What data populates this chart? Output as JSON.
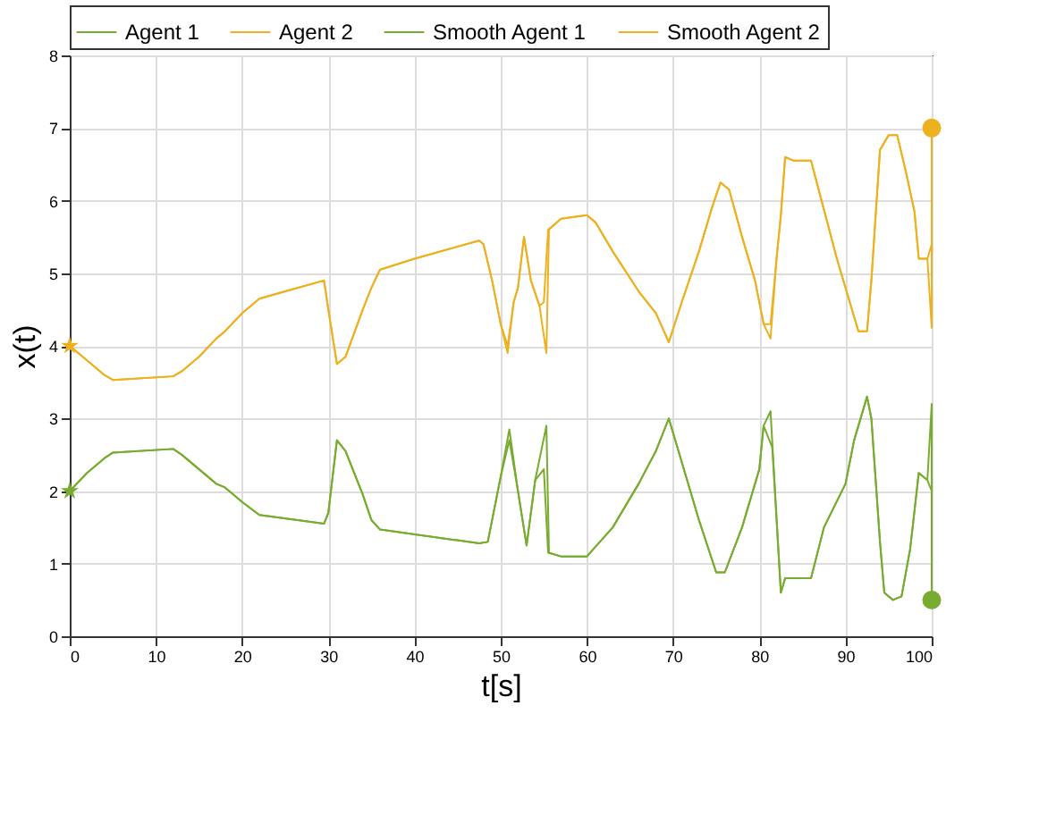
{
  "chart_data": {
    "type": "line",
    "xlabel": "t[s]",
    "ylabel": "x(t)",
    "xlim": [
      0,
      100
    ],
    "xticks": [
      0,
      10,
      20,
      30,
      40,
      50,
      60,
      70,
      80,
      90,
      100
    ],
    "ylim": [
      0,
      8
    ],
    "yticks": [
      0,
      1,
      2,
      3,
      4,
      5,
      6,
      7,
      8
    ],
    "grid": true,
    "legend": "top",
    "marker": "none",
    "line_style": "solid",
    "series": [
      {
        "name": "Agent 1",
        "color": "#77ac30",
        "x": [
          0,
          2,
          4,
          5,
          12,
          13,
          15,
          17,
          18,
          20,
          22,
          29.5,
          30,
          31,
          32,
          34,
          35,
          36,
          47.5,
          48.5,
          50,
          51,
          52,
          53,
          54,
          55.3,
          55.6,
          57,
          60,
          63,
          66,
          68,
          69.5,
          71,
          73,
          75,
          76,
          78,
          80,
          80.5,
          81.3,
          82.5,
          83,
          86,
          87.5,
          90,
          91,
          92.5,
          93,
          94,
          94.5,
          95.5,
          96.5,
          97.5,
          98.5,
          99.5,
          100,
          100
        ],
        "values": [
          2.0,
          2.25,
          2.45,
          2.53,
          2.58,
          2.5,
          2.3,
          2.1,
          2.05,
          1.85,
          1.67,
          1.55,
          1.7,
          2.7,
          2.55,
          1.95,
          1.6,
          1.47,
          1.28,
          1.3,
          2.2,
          2.85,
          2.0,
          1.25,
          2.15,
          2.9,
          1.15,
          1.1,
          1.1,
          1.5,
          2.1,
          2.55,
          3.0,
          2.4,
          1.6,
          0.88,
          0.88,
          1.5,
          2.3,
          2.9,
          3.1,
          0.6,
          0.8,
          0.8,
          1.5,
          2.1,
          2.7,
          3.3,
          3.0,
          1.3,
          0.6,
          0.5,
          0.55,
          1.2,
          2.25,
          2.15,
          3.2,
          0.5
        ]
      },
      {
        "name": "Agent 2",
        "color": "#edb120",
        "x": [
          0,
          2,
          4,
          5,
          12,
          13,
          15,
          17,
          18,
          20,
          22,
          25,
          29.5,
          30,
          31,
          32,
          34,
          35,
          36,
          40,
          47.5,
          48,
          49,
          50,
          50.8,
          51.5,
          52,
          52.7,
          53.5,
          54.5,
          55.3,
          55.6,
          57,
          60,
          61,
          63,
          66,
          68,
          69.5,
          71,
          73,
          74.5,
          75.5,
          76.5,
          78,
          79.5,
          80.5,
          81.3,
          82,
          82.5,
          83,
          84,
          86,
          87,
          89,
          90.5,
          91.5,
          92.5,
          93,
          94,
          95,
          96,
          97,
          98,
          98.5,
          99.5,
          100,
          100
        ],
        "values": [
          4.0,
          3.8,
          3.6,
          3.53,
          3.58,
          3.65,
          3.85,
          4.1,
          4.2,
          4.45,
          4.65,
          4.75,
          4.9,
          4.5,
          3.75,
          3.85,
          4.5,
          4.8,
          5.05,
          5.2,
          5.45,
          5.4,
          4.9,
          4.3,
          3.9,
          4.6,
          4.8,
          5.5,
          4.9,
          4.55,
          3.9,
          5.6,
          5.75,
          5.8,
          5.7,
          5.3,
          4.75,
          4.45,
          4.05,
          4.6,
          5.3,
          5.9,
          6.25,
          6.15,
          5.5,
          4.9,
          4.3,
          4.1,
          5.2,
          5.8,
          6.6,
          6.55,
          6.55,
          6.1,
          5.2,
          4.6,
          4.2,
          4.2,
          4.9,
          6.7,
          6.9,
          6.9,
          6.4,
          5.85,
          5.2,
          5.2,
          4.25,
          7.0
        ]
      },
      {
        "name": "Smooth Agent 1",
        "color": "#77ac30",
        "x": [
          0,
          2,
          4,
          5,
          12,
          13,
          15,
          17,
          18,
          20,
          22,
          29.5,
          30,
          31,
          32,
          34,
          35,
          36,
          47.5,
          48.5,
          50,
          51,
          52,
          53,
          54,
          55,
          55.5,
          57,
          60,
          63,
          66,
          68,
          69.5,
          71,
          73,
          75,
          76,
          78,
          80,
          80.5,
          81.5,
          82.5,
          83,
          86,
          87.5,
          90,
          91,
          92.5,
          93,
          94,
          94.5,
          95.5,
          96.5,
          97.5,
          98.5,
          99.5,
          100
        ],
        "values": [
          2.0,
          2.25,
          2.45,
          2.53,
          2.58,
          2.5,
          2.3,
          2.1,
          2.05,
          1.85,
          1.67,
          1.55,
          1.7,
          2.7,
          2.55,
          1.95,
          1.6,
          1.47,
          1.28,
          1.3,
          2.2,
          2.7,
          2.0,
          1.25,
          2.15,
          2.3,
          1.15,
          1.1,
          1.1,
          1.5,
          2.1,
          2.55,
          3.0,
          2.4,
          1.6,
          0.88,
          0.88,
          1.5,
          2.3,
          2.9,
          2.6,
          0.6,
          0.8,
          0.8,
          1.5,
          2.1,
          2.7,
          3.3,
          3.0,
          1.3,
          0.6,
          0.5,
          0.55,
          1.2,
          2.25,
          2.15,
          2.0
        ]
      },
      {
        "name": "Smooth Agent 2",
        "color": "#edb120",
        "x": [
          0,
          2,
          4,
          5,
          12,
          13,
          15,
          17,
          18,
          20,
          22,
          25,
          29.5,
          30,
          31,
          32,
          34,
          35,
          36,
          40,
          47.5,
          48,
          49,
          50,
          50.8,
          51.5,
          52,
          52.7,
          53.5,
          54.5,
          55,
          55.5,
          57,
          60,
          61,
          63,
          66,
          68,
          69.5,
          71,
          73,
          74.5,
          75.5,
          76.5,
          78,
          79.5,
          80.5,
          81.3,
          82,
          82.5,
          83,
          84,
          86,
          87,
          89,
          90.5,
          91.5,
          92.5,
          93,
          94,
          95,
          96,
          97,
          98,
          98.5,
          99.5,
          100
        ],
        "values": [
          4.0,
          3.8,
          3.6,
          3.53,
          3.58,
          3.65,
          3.85,
          4.1,
          4.2,
          4.45,
          4.65,
          4.75,
          4.9,
          4.5,
          3.75,
          3.85,
          4.5,
          4.8,
          5.05,
          5.2,
          5.45,
          5.4,
          4.9,
          4.3,
          4.0,
          4.6,
          4.8,
          5.5,
          4.9,
          4.55,
          4.6,
          5.6,
          5.75,
          5.8,
          5.7,
          5.3,
          4.75,
          4.45,
          4.05,
          4.6,
          5.3,
          5.9,
          6.25,
          6.15,
          5.5,
          4.9,
          4.3,
          4.3,
          5.2,
          5.8,
          6.6,
          6.55,
          6.55,
          6.1,
          5.2,
          4.6,
          4.2,
          4.2,
          4.9,
          6.7,
          6.9,
          6.9,
          6.4,
          5.85,
          5.2,
          5.2,
          5.4
        ]
      },
      {
        "type": "scatter",
        "marker": "star",
        "color": "#77ac30",
        "x": [
          0
        ],
        "values": [
          2.0
        ]
      },
      {
        "type": "scatter",
        "marker": "star",
        "color": "#edb120",
        "x": [
          0
        ],
        "values": [
          4.0
        ]
      },
      {
        "type": "scatter",
        "marker": "circle",
        "color": "#77ac30",
        "x": [
          100
        ],
        "values": [
          0.5
        ]
      },
      {
        "type": "scatter",
        "marker": "circle",
        "color": "#edb120",
        "x": [
          100
        ],
        "values": [
          7.0
        ]
      }
    ]
  }
}
